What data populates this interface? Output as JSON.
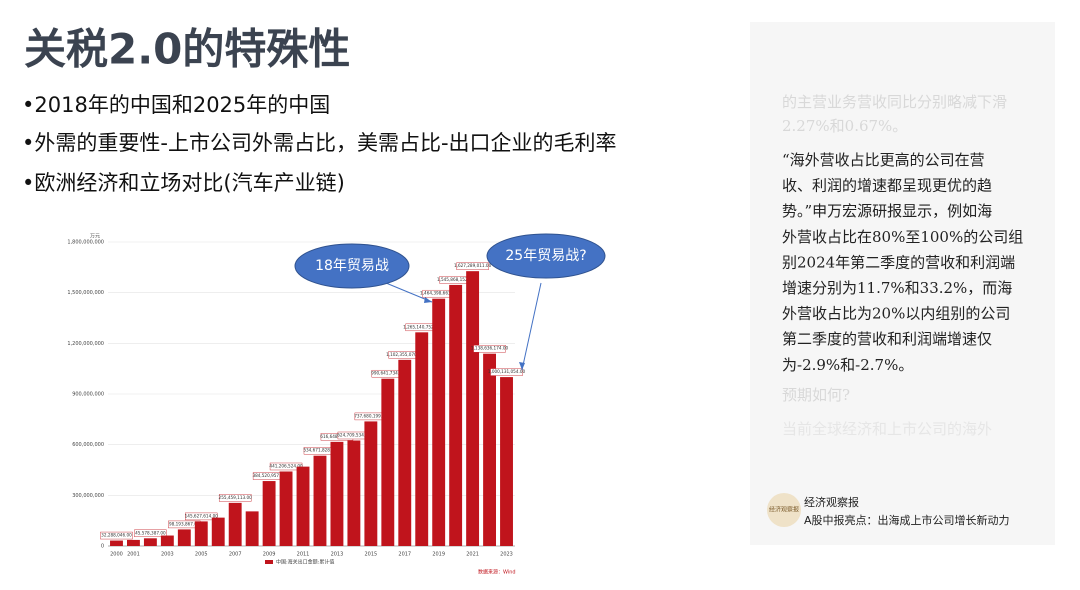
{
  "slide": {
    "title": "关税2.0的特殊性",
    "bullets": [
      "•2018年的中国和2025年的中国",
      "•外需的重要性-上市公司外需占比，美需占比-出口企业的毛利率",
      "•欧洲经济和立场对比(汽车产业链)"
    ]
  },
  "panel": {
    "faded_top": [
      "的主营业务营收同比分别略减下滑",
      "2.27%和0.67%。"
    ],
    "quote_lines": [
      "“海外营收占比更高的公司在营",
      "收、利润的增速都呈现更优的趋",
      "势。”申万宏源研报显示，例如海",
      "外营收占比在80%至100%的公司组",
      "别2024年第二季度的营收和利润端",
      "增速分别为11.7%和33.2%，而海",
      "外营收占比为20%以内组别的公司",
      "第二季度的营收和利润端增速仅",
      "为-2.9%和-2.7%。"
    ],
    "faded_bottom": [
      "预期如何?",
      "当前全球经济和上市公司的海外"
    ],
    "source_name": "经济观察报",
    "source_logo": "经济观察报",
    "headline": "A股中报亮点：出海成上市公司增长新动力"
  },
  "chart_data": {
    "type": "bar",
    "y_unit": "万元",
    "legend_label": "中国:海关出口金额:累计值",
    "source": "数据来源：Wind",
    "annotations": [
      "18年贸易战",
      "25年贸易战?"
    ],
    "color": "#c0141c",
    "categories": [
      "2000",
      "2001",
      null,
      "2003",
      null,
      "2005",
      null,
      "2007",
      null,
      "2009",
      null,
      "2011",
      null,
      "2013",
      null,
      "2015",
      null,
      "2017",
      null,
      "2019",
      null,
      "2021",
      null,
      "2023"
    ],
    "values": [
      32288046,
      36000000,
      45578387,
      62000000,
      98193867,
      145627614,
      168000000,
      255459113,
      205000000,
      384520957,
      441206524,
      470000000,
      534671828,
      616648387,
      624709534,
      737680199,
      990641734,
      1102355070,
      1265140752,
      1464398663,
      1545868152,
      1627289011,
      1138636174,
      1000131054
    ],
    "value_labels": [
      "32,288,046.00",
      null,
      "45,578,387.00",
      null,
      "98,193,867.00",
      "145,627,614.00",
      null,
      "255,459,113.00",
      null,
      "384,520,957.00",
      "441,206,524.00",
      null,
      "534,671,828.00",
      "616,648,387.00",
      "624,709,534.00",
      "737,680,199.00",
      "990,641,734.00",
      "1,102,355,070.00",
      "1,265,140,752.00",
      "1,464,398,663.00",
      "1,545,868,152.00",
      "1,627,289,011.00",
      "1,138,636,174.00",
      "1,000,131,054.00"
    ],
    "ylim": [
      0,
      1800000000
    ],
    "yticks": [
      0,
      {
        "value": 300000000,
        "label": "300,000,000"
      },
      {
        "value": 600000000,
        "label": "600,000,000"
      },
      {
        "value": 900000000,
        "label": "900,000,000"
      },
      {
        "value": 1200000000,
        "label": "1,200,000,000"
      },
      {
        "value": 1500000000,
        "label": "1,500,000,000"
      },
      {
        "value": 1800000000,
        "label": "1,800,000,000"
      }
    ],
    "grid": true
  }
}
